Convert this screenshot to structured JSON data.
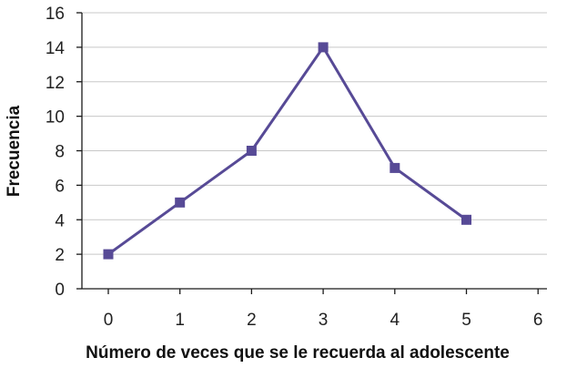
{
  "chart_data": {
    "type": "line",
    "title": "",
    "xlabel": "Número de veces que se le recuerda al adolescente",
    "ylabel": "Frecuencia",
    "xlim": [
      0,
      6
    ],
    "ylim": [
      0,
      16
    ],
    "x_ticks": [
      "0",
      "1",
      "2",
      "3",
      "4",
      "5",
      "6"
    ],
    "y_ticks": [
      "0",
      "2",
      "4",
      "6",
      "8",
      "10",
      "12",
      "14",
      "16"
    ],
    "grid": "horizontal",
    "series": [
      {
        "x": [
          0,
          1,
          2,
          3,
          4,
          5
        ],
        "values": [
          2,
          5,
          8,
          14,
          7,
          4
        ],
        "color": "#574a96",
        "marker": "square"
      }
    ]
  }
}
